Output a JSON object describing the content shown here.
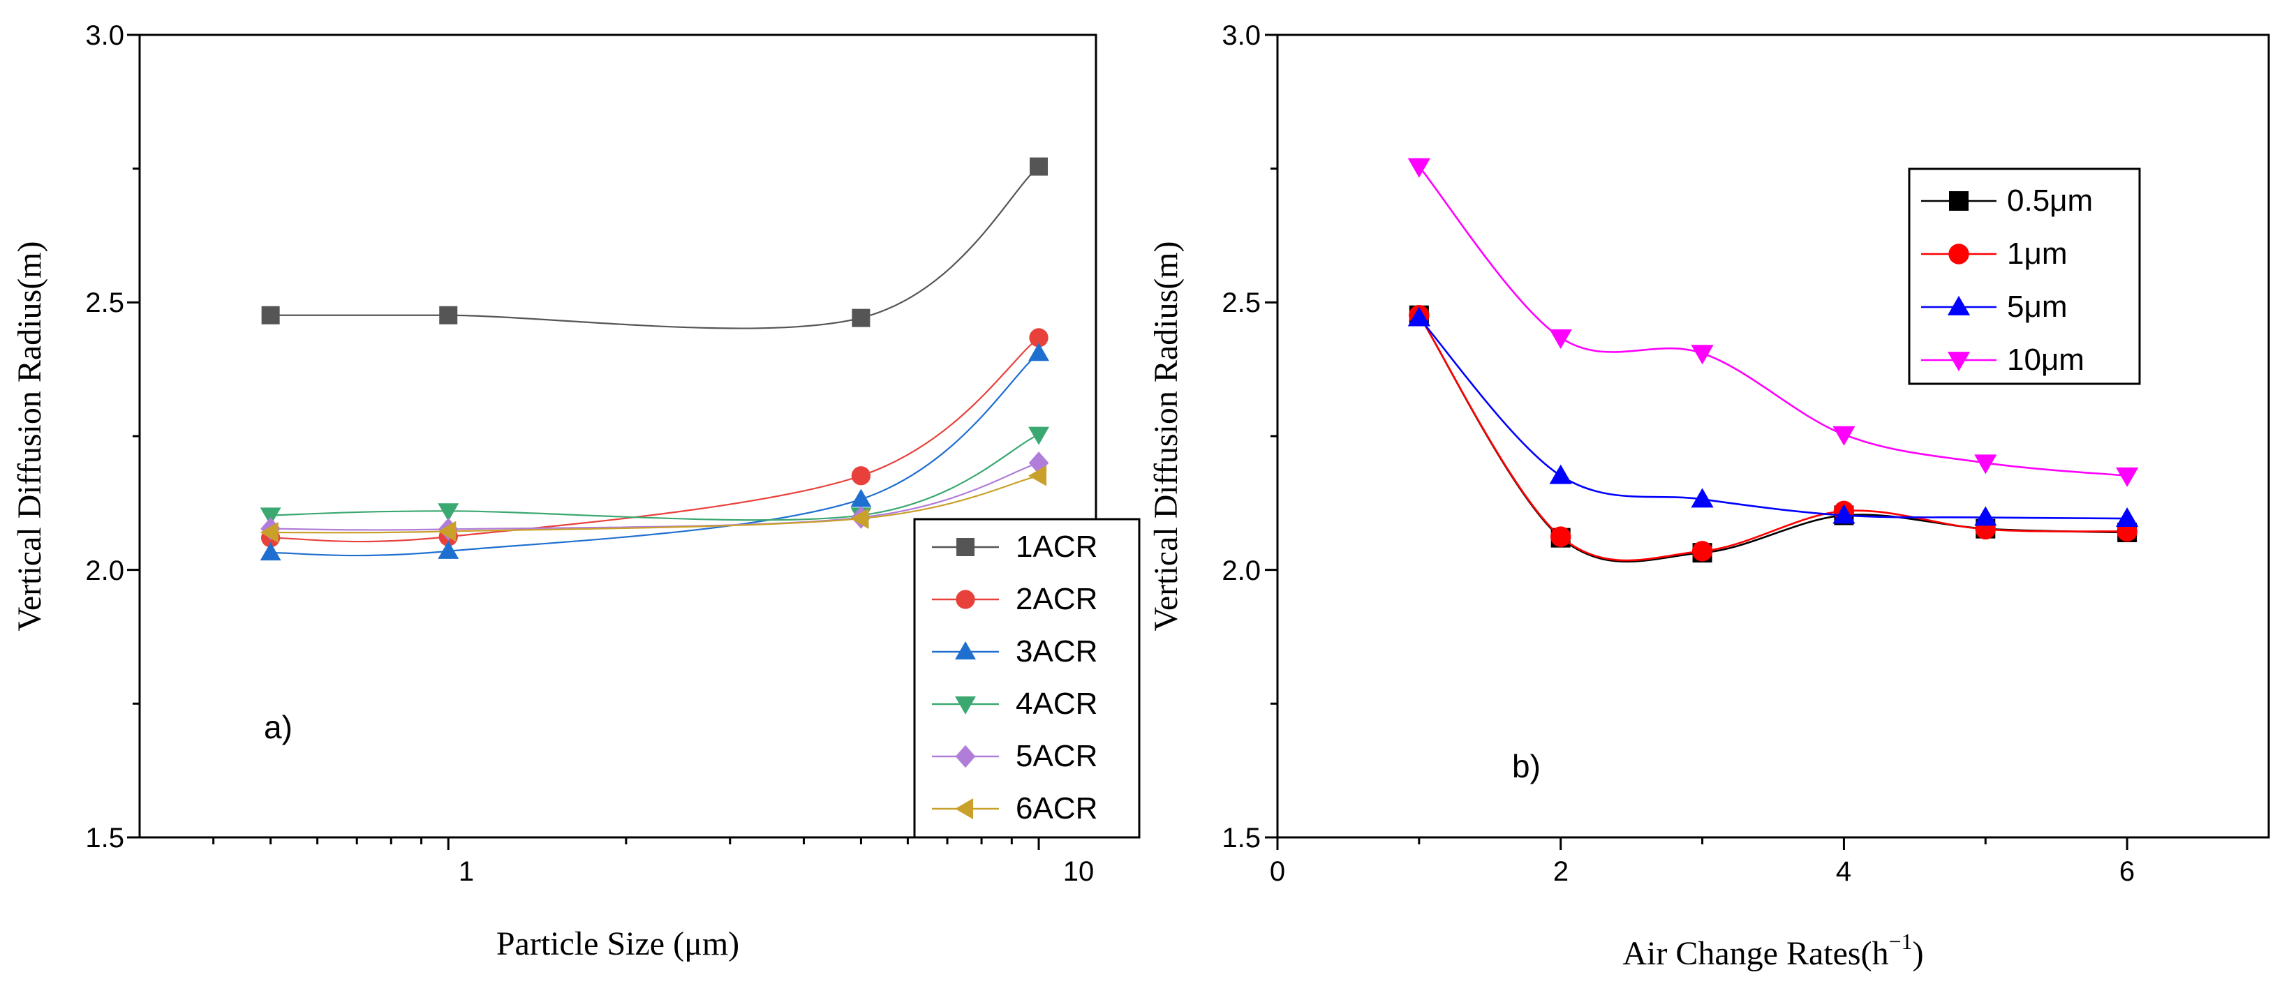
{
  "chart_data": [
    {
      "type": "line",
      "panel_label": "a)",
      "xlabel": "Particle Size (μm)",
      "ylabel": "Vertical Diffusion Radius(m)",
      "xscale": "log",
      "xlim": [
        0.3,
        12.5
      ],
      "ylim": [
        1.5,
        3.0
      ],
      "x_tick_labels": [
        "1",
        "10"
      ],
      "y_tick_labels": [
        "1.5",
        "2.0",
        "2.5",
        "3.0"
      ],
      "legend_position": "bottom-right",
      "x": [
        0.5,
        1,
        5,
        10
      ],
      "series": [
        {
          "name": "1ACR",
          "color": "#555555",
          "marker": "square",
          "values": [
            2.476,
            2.476,
            2.471,
            2.754
          ]
        },
        {
          "name": "2ACR",
          "color": "#e8413c",
          "marker": "circle",
          "values": [
            2.06,
            2.062,
            2.176,
            2.434
          ]
        },
        {
          "name": "3ACR",
          "color": "#1f6fd1",
          "marker": "triangle-up",
          "values": [
            2.032,
            2.035,
            2.132,
            2.405
          ]
        },
        {
          "name": "4ACR",
          "color": "#3aa870",
          "marker": "triangle-down",
          "values": [
            2.102,
            2.11,
            2.102,
            2.253
          ]
        },
        {
          "name": "5ACR",
          "color": "#b07dd9",
          "marker": "diamond",
          "values": [
            2.077,
            2.076,
            2.098,
            2.2
          ]
        },
        {
          "name": "6ACR",
          "color": "#c9a02a",
          "marker": "triangle-left",
          "values": [
            2.07,
            2.072,
            2.096,
            2.176
          ]
        }
      ]
    },
    {
      "type": "line",
      "panel_label": "b)",
      "xlabel_main": "Air Change Rates(h",
      "xlabel_sup": "−1",
      "xlabel_end": ")",
      "ylabel": "Vertical Diffusion Radius(m)",
      "xlim": [
        0,
        7
      ],
      "ylim": [
        1.5,
        3.0
      ],
      "x_tick_labels": [
        "0",
        "2",
        "4",
        "6"
      ],
      "y_tick_labels": [
        "1.5",
        "2.0",
        "2.5",
        "3.0"
      ],
      "legend_position": "top-right",
      "x": [
        1,
        2,
        3,
        4,
        5,
        6
      ],
      "series": [
        {
          "name": "0.5μm",
          "color": "#000000",
          "marker": "square",
          "values": [
            2.476,
            2.06,
            2.032,
            2.102,
            2.077,
            2.07
          ]
        },
        {
          "name": "1μm",
          "color": "#ff0000",
          "marker": "circle",
          "values": [
            2.476,
            2.062,
            2.035,
            2.11,
            2.076,
            2.072
          ]
        },
        {
          "name": "5μm",
          "color": "#0000ff",
          "marker": "triangle-up",
          "values": [
            2.471,
            2.176,
            2.132,
            2.102,
            2.098,
            2.096
          ]
        },
        {
          "name": "10μm",
          "color": "#ff00ff",
          "marker": "triangle-down",
          "values": [
            2.754,
            2.434,
            2.405,
            2.253,
            2.2,
            2.176
          ]
        }
      ]
    }
  ]
}
